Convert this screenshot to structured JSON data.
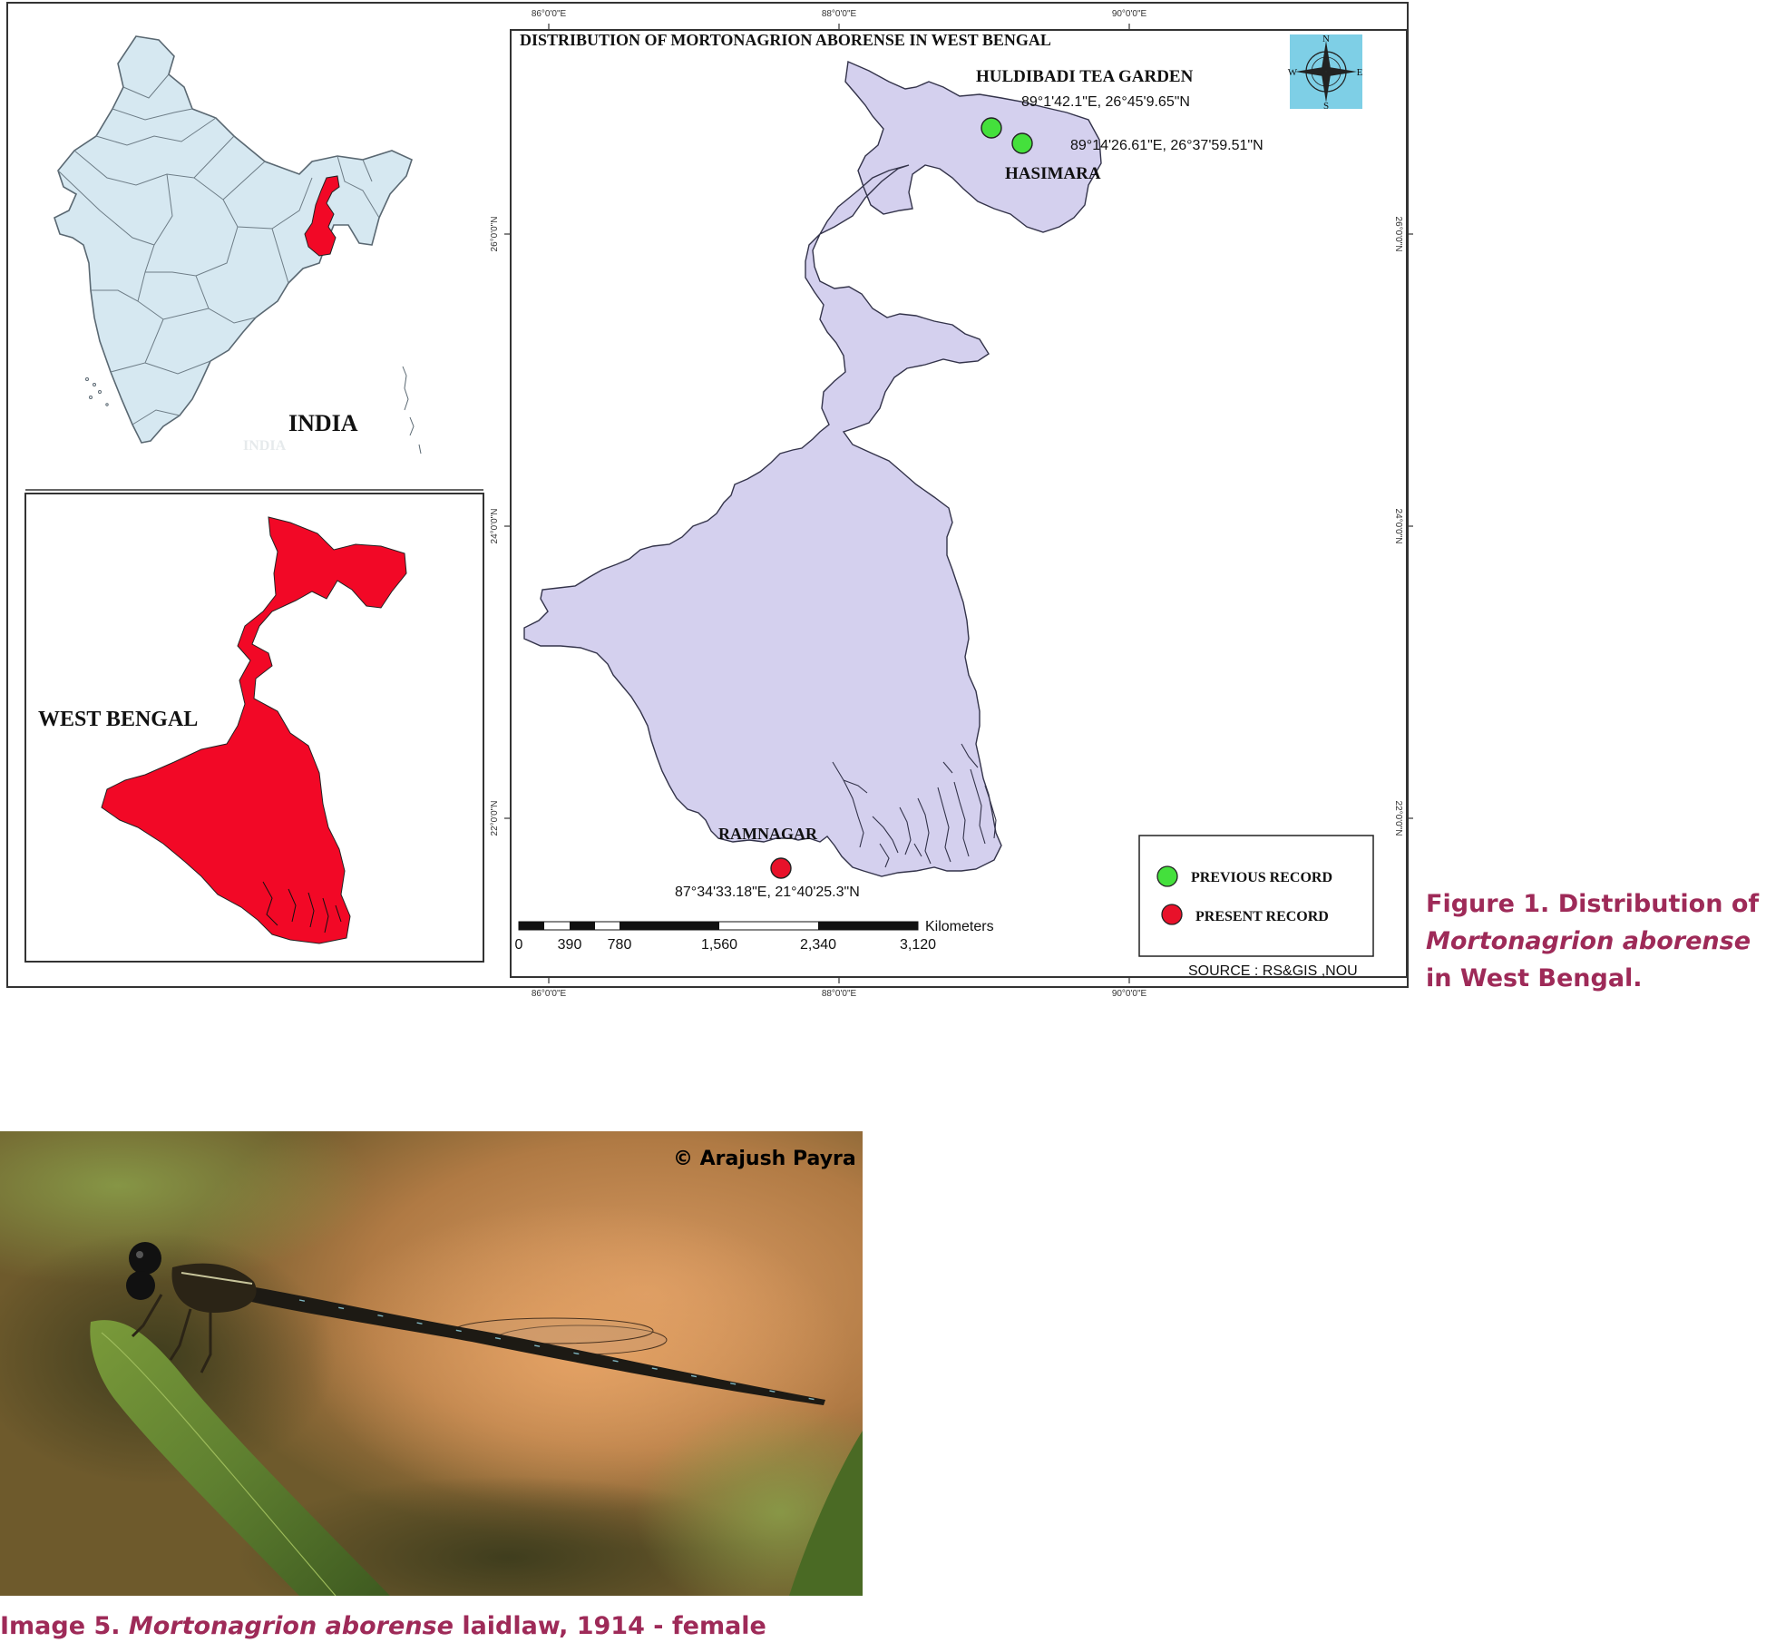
{
  "map": {
    "title": "DISTRIBUTION OF MORTONAGRION ABORENSE IN WEST BENGAL",
    "inset_india_label": "INDIA",
    "inset_wb_label": "WEST BENGAL",
    "localities": [
      {
        "name": "HULDIBADI TEA GARDEN",
        "coord": "89°1'42.1\"E, 26°45'9.65\"N",
        "record": "previous"
      },
      {
        "name": "HASIMARA",
        "coord": "89°14'26.61\"E, 26°37'59.51\"N",
        "record": "previous"
      },
      {
        "name": "RAMNAGAR",
        "coord": "87°34'33.18\"E, 21°40'25.3\"N",
        "record": "present"
      }
    ],
    "legend": {
      "previous_label": "PREVIOUS RECORD",
      "present_label": "PRESENT RECORD",
      "previous_color": "#44e03c",
      "present_color": "#e8112a"
    },
    "scale": {
      "unit": "Kilometers",
      "ticks": [
        "0",
        "390",
        "780",
        "1,560",
        "2,340",
        "3,120"
      ]
    },
    "source": "SOURCE : RS&GIS ,NOU",
    "graticule": {
      "lon": [
        "86°0'0\"E",
        "88°0'0\"E",
        "90°0'0\"E"
      ],
      "lat": [
        "26°0'0\"N",
        "24°0'0\"N",
        "22°0'0\"N"
      ]
    },
    "compass": {
      "n": "N",
      "s": "S",
      "e": "E",
      "w": "W"
    },
    "colors": {
      "state_fill": "#d4d0ee",
      "india_fill": "#d6e8f1",
      "highlight_red": "#f20826",
      "compass_bg": "#7ecfe6"
    }
  },
  "figure_caption": {
    "prefix": "Figure 1. Distribution of",
    "species": "Mortonagrion aborense",
    "suffix": "in West Bengal."
  },
  "photo": {
    "credit": "© Arajush Payra"
  },
  "image_caption": {
    "prefix": "Image 5.",
    "species": "Mortonagrion aborense",
    "suffix": "laidlaw, 1914 - female"
  }
}
